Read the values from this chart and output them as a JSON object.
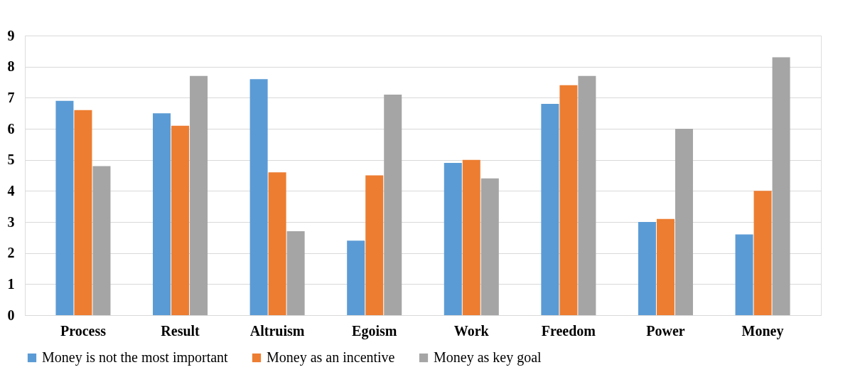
{
  "chart_data": {
    "type": "bar",
    "categories": [
      "Process",
      "Result",
      "Altruism",
      "Egoism",
      "Work",
      "Freedom",
      "Power",
      "Money"
    ],
    "series": [
      {
        "name": "Money is not the most important",
        "color": "#5b9bd5",
        "values": [
          6.9,
          6.5,
          7.6,
          2.4,
          4.9,
          6.8,
          3.0,
          2.6
        ]
      },
      {
        "name": "Money as an incentive",
        "color": "#ed7d31",
        "values": [
          6.6,
          6.1,
          4.6,
          4.5,
          5.0,
          7.4,
          3.1,
          4.0
        ]
      },
      {
        "name": "Money as key goal",
        "color": "#a5a5a5",
        "values": [
          4.8,
          7.7,
          2.7,
          7.1,
          4.4,
          7.7,
          6.0,
          8.3
        ]
      }
    ],
    "ylim": [
      0,
      9
    ],
    "yticks": [
      0,
      1,
      2,
      3,
      4,
      5,
      6,
      7,
      8,
      9
    ],
    "grid": "y",
    "legend": "bottom"
  }
}
